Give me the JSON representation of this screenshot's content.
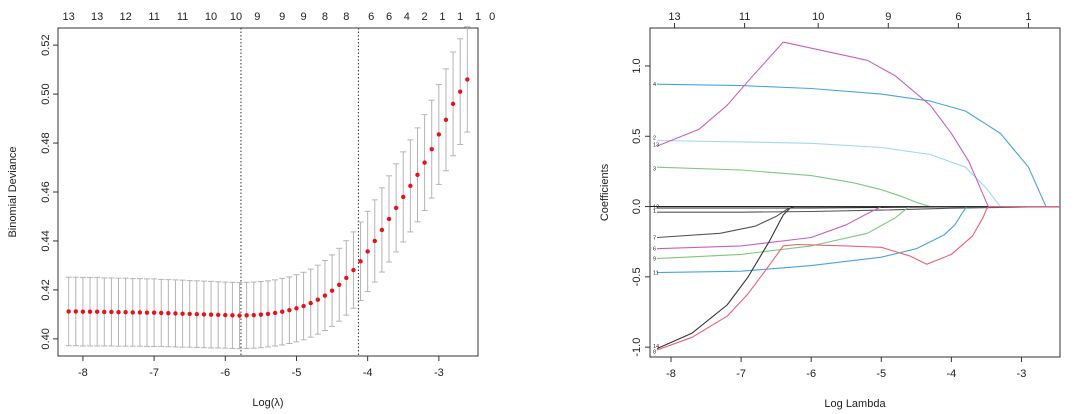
{
  "chart_data": [
    {
      "type": "scatter",
      "title": "",
      "xlabel": "Log(λ)",
      "ylabel": "Binomial Deviance",
      "xlim": [
        -8.35,
        -2.45
      ],
      "ylim": [
        0.393,
        0.527
      ],
      "x_ticks": [
        -8,
        -7,
        -6,
        -5,
        -4,
        -3
      ],
      "y_ticks": [
        0.4,
        0.42,
        0.44,
        0.46,
        0.48,
        0.5,
        0.52
      ],
      "top_axis_labels": [
        "13",
        "13",
        "12",
        "11",
        "11",
        "10",
        "10",
        "9",
        "9",
        "9",
        "8",
        "8",
        "6",
        "6",
        "4",
        "2",
        "1",
        "1",
        "1",
        "0"
      ],
      "top_axis_x": [
        -8.2,
        -7.8,
        -7.4,
        -7.0,
        -6.6,
        -6.2,
        -5.85,
        -5.55,
        -5.2,
        -4.9,
        -4.6,
        -4.3,
        -3.95,
        -3.7,
        -3.45,
        -3.2,
        -2.95,
        -2.7,
        -2.45,
        -2.25
      ],
      "vlines": [
        -5.78,
        -4.13
      ],
      "points": {
        "x": [
          -8.2,
          -8.1,
          -8.0,
          -7.9,
          -7.8,
          -7.7,
          -7.6,
          -7.5,
          -7.4,
          -7.3,
          -7.2,
          -7.1,
          -7.0,
          -6.9,
          -6.8,
          -6.7,
          -6.6,
          -6.5,
          -6.4,
          -6.3,
          -6.2,
          -6.1,
          -6.0,
          -5.9,
          -5.8,
          -5.7,
          -5.6,
          -5.5,
          -5.4,
          -5.3,
          -5.2,
          -5.1,
          -5.0,
          -4.9,
          -4.8,
          -4.7,
          -4.6,
          -4.5,
          -4.4,
          -4.3,
          -4.2,
          -4.1,
          -4.0,
          -3.9,
          -3.8,
          -3.7,
          -3.6,
          -3.5,
          -3.4,
          -3.3,
          -3.2,
          -3.1,
          -3.0,
          -2.9,
          -2.8,
          -2.7,
          -2.6
        ],
        "y": [
          0.4112,
          0.4112,
          0.4111,
          0.4111,
          0.4111,
          0.411,
          0.411,
          0.4109,
          0.4109,
          0.4108,
          0.4108,
          0.4107,
          0.4107,
          0.4106,
          0.4105,
          0.4104,
          0.4103,
          0.4102,
          0.4101,
          0.41,
          0.4099,
          0.4098,
          0.4097,
          0.4096,
          0.4095,
          0.4096,
          0.4097,
          0.4099,
          0.4102,
          0.4106,
          0.4111,
          0.4117,
          0.4125,
          0.4134,
          0.4146,
          0.416,
          0.4177,
          0.4197,
          0.4221,
          0.4249,
          0.4281,
          0.4317,
          0.4357,
          0.44,
          0.4445,
          0.449,
          0.4535,
          0.458,
          0.4625,
          0.467,
          0.472,
          0.4775,
          0.4835,
          0.4895,
          0.496,
          0.501,
          0.506
        ],
        "err": [
          0.014,
          0.014,
          0.014,
          0.014,
          0.014,
          0.0139,
          0.0139,
          0.0139,
          0.0139,
          0.0138,
          0.0138,
          0.0138,
          0.0138,
          0.0137,
          0.0137,
          0.0137,
          0.0137,
          0.0136,
          0.0136,
          0.0136,
          0.0136,
          0.0135,
          0.0135,
          0.0135,
          0.0135,
          0.0135,
          0.0135,
          0.0135,
          0.0135,
          0.0135,
          0.0136,
          0.0136,
          0.0137,
          0.0138,
          0.0139,
          0.0141,
          0.0143,
          0.0146,
          0.0149,
          0.0152,
          0.0156,
          0.016,
          0.0164,
          0.0168,
          0.0172,
          0.0176,
          0.018,
          0.0184,
          0.0188,
          0.0192,
          0.0196,
          0.02,
          0.0204,
          0.0208,
          0.0212,
          0.0216,
          0.0215
        ]
      },
      "colors": {
        "point": "#e6121c",
        "errorbar": "#b4b4b4",
        "vline": "#333333"
      }
    },
    {
      "type": "line",
      "title": "",
      "xlabel": "Log Lambda",
      "ylabel": "Coefficients",
      "xlim": [
        -8.3,
        -2.45
      ],
      "ylim": [
        -1.07,
        1.27
      ],
      "x_ticks": [
        -8,
        -7,
        -6,
        -5,
        -4,
        -3
      ],
      "y_ticks": [
        -1.0,
        -0.5,
        0.0,
        0.5,
        1.0
      ],
      "top_axis_labels": [
        "13",
        "11",
        "10",
        "9",
        "6",
        "1"
      ],
      "top_axis_x": [
        -7.95,
        -6.95,
        -5.9,
        -4.9,
        -3.9,
        -2.9
      ],
      "series": [
        {
          "name": "4",
          "color": "#4aa3df",
          "x": [
            -8.2,
            -7.0,
            -6.0,
            -5.0,
            -4.3,
            -3.8,
            -3.3,
            -2.9,
            -2.65
          ],
          "y": [
            0.87,
            0.86,
            0.84,
            0.8,
            0.75,
            0.68,
            0.52,
            0.28,
            0.0
          ]
        },
        {
          "name": "13",
          "color": "#a0d8ef",
          "x": [
            -8.2,
            -7.0,
            -6.0,
            -5.0,
            -4.3,
            -3.8,
            -3.5,
            -3.3
          ],
          "y": [
            0.47,
            0.46,
            0.45,
            0.42,
            0.37,
            0.28,
            0.13,
            0.0
          ]
        },
        {
          "name": "3",
          "color": "#7ec87e",
          "x": [
            -8.2,
            -7.0,
            -6.0,
            -5.4,
            -5.0,
            -4.7,
            -4.5,
            -4.3
          ],
          "y": [
            0.28,
            0.26,
            0.22,
            0.17,
            0.12,
            0.07,
            0.03,
            0.0
          ]
        },
        {
          "name": "5",
          "color": "#c95fc4",
          "x": [
            -8.2,
            -7.6,
            -7.2,
            -6.85,
            -6.4,
            -5.2,
            -4.8,
            -4.3,
            -4.0,
            -3.75,
            -3.62,
            -3.5,
            -3.47
          ],
          "y": [
            0.43,
            0.55,
            0.72,
            0.92,
            1.17,
            1.04,
            0.93,
            0.72,
            0.52,
            0.32,
            0.17,
            0.03,
            0.0
          ]
        },
        {
          "name": "12",
          "color": "#222222",
          "x": [
            -8.2,
            -7.0,
            -6.0,
            -5.0,
            -4.0,
            -3.0,
            -2.65
          ],
          "y": [
            -0.01,
            -0.01,
            -0.01,
            -0.006,
            -0.003,
            -0.001,
            0.0
          ]
        },
        {
          "name": "1",
          "color": "#555555",
          "x": [
            -8.2,
            -7.0,
            -6.0,
            -5.0,
            -4.0,
            -3.0,
            -2.65
          ],
          "y": [
            -0.04,
            -0.04,
            -0.035,
            -0.025,
            -0.012,
            -0.004,
            0.0
          ]
        },
        {
          "name": "7",
          "color": "#555555",
          "x": [
            -8.2,
            -7.3,
            -6.8,
            -6.5,
            -6.35,
            -6.25
          ],
          "y": [
            -0.22,
            -0.19,
            -0.14,
            -0.07,
            -0.02,
            0.0
          ]
        },
        {
          "name": "6",
          "color": "#c95fc4",
          "x": [
            -8.2,
            -7.0,
            -6.0,
            -5.5,
            -5.2,
            -5.0
          ],
          "y": [
            -0.3,
            -0.28,
            -0.22,
            -0.13,
            -0.05,
            0.0
          ]
        },
        {
          "name": "9",
          "color": "#7ec87e",
          "x": [
            -8.2,
            -7.0,
            -6.0,
            -5.2,
            -4.8,
            -4.6
          ],
          "y": [
            -0.37,
            -0.34,
            -0.28,
            -0.19,
            -0.08,
            0.0
          ]
        },
        {
          "name": "11",
          "color": "#4aa3df",
          "x": [
            -8.2,
            -7.0,
            -6.0,
            -5.0,
            -4.5,
            -4.1,
            -3.95,
            -3.85,
            -3.78
          ],
          "y": [
            -0.47,
            -0.46,
            -0.42,
            -0.36,
            -0.3,
            -0.2,
            -0.13,
            -0.05,
            0.0
          ]
        },
        {
          "name": "14",
          "color": "#333333",
          "x": [
            -8.2,
            -7.7,
            -7.2,
            -6.9,
            -6.6,
            -6.4,
            -6.3,
            -6.25
          ],
          "y": [
            -1.01,
            -0.9,
            -0.7,
            -0.5,
            -0.25,
            -0.06,
            -0.01,
            0.0
          ]
        },
        {
          "name": "8",
          "color": "#e8607a",
          "x": [
            -8.2,
            -7.7,
            -7.2,
            -6.9,
            -6.6,
            -6.4,
            -6.2,
            -5.5,
            -5.0,
            -4.6,
            -4.35,
            -4.0,
            -3.7,
            -3.55,
            -3.5,
            -3.47
          ],
          "y": [
            -1.02,
            -0.93,
            -0.78,
            -0.62,
            -0.42,
            -0.28,
            -0.27,
            -0.28,
            -0.29,
            -0.35,
            -0.41,
            -0.34,
            -0.21,
            -0.08,
            -0.02,
            0.0
          ]
        },
        {
          "name": "2",
          "color": "#4aa3df",
          "x": [],
          "y": []
        },
        {
          "name": "10",
          "color": "#a0d8ef",
          "x": [],
          "y": []
        }
      ],
      "line_labels": [
        {
          "text": "4",
          "at_y": 0.87
        },
        {
          "text": "2",
          "at_y": 0.49
        },
        {
          "text": "13",
          "at_y": 0.44
        },
        {
          "text": "3",
          "at_y": 0.27
        },
        {
          "text": "12",
          "at_y": 0.0
        },
        {
          "text": "1",
          "at_y": -0.03
        },
        {
          "text": "7",
          "at_y": -0.22
        },
        {
          "text": "6",
          "at_y": -0.3
        },
        {
          "text": "9",
          "at_y": -0.37
        },
        {
          "text": "11",
          "at_y": -0.47
        },
        {
          "text": "14",
          "at_y": -0.99
        },
        {
          "text": "8",
          "at_y": -1.03
        }
      ],
      "colors": {
        "zero_line": "#222222"
      }
    }
  ]
}
